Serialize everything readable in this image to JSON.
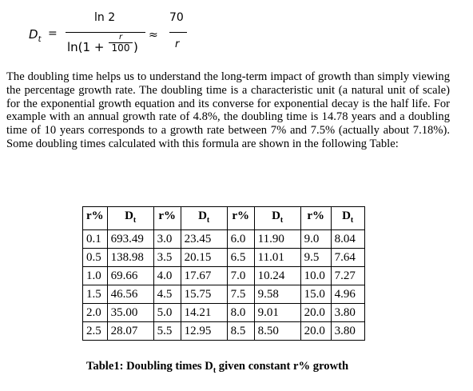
{
  "formula": {
    "lhs_symbol": "D",
    "lhs_sub": "t",
    "equals": "=",
    "num1": "ln 2",
    "den1_prefix": "ln(1 +",
    "small_num": "r",
    "small_den": "100",
    "den1_suffix": ")",
    "approx": "≈",
    "num2": "70",
    "den2": "r"
  },
  "paragraph": "The doubling time helps us to understand the long-term impact of growth than simply viewing the percentage growth rate. The doubling time is a characteristic unit (a natural unit of scale) for the exponential growth equation and its converse for exponential decay is the half life. For example with an annual growth rate of 4.8%, the doubling time is 14.78 years and a doubling time of 10 years corresponds to a growth rate between 7% and 7.5% (actually about 7.18%). Some doubling times calculated with this formula are shown in the following Table:",
  "table": {
    "headers": [
      {
        "main": "r%",
        "sub": ""
      },
      {
        "main": "D",
        "sub": "t"
      },
      {
        "main": "r%",
        "sub": ""
      },
      {
        "main": "D",
        "sub": "t"
      },
      {
        "main": "r%",
        "sub": ""
      },
      {
        "main": "D",
        "sub": "t"
      },
      {
        "main": "r%",
        "sub": ""
      },
      {
        "main": "D",
        "sub": "t"
      }
    ],
    "rows": [
      [
        "0.1",
        "693.49",
        "3.0",
        "23.45",
        "6.0",
        "11.90",
        "9.0",
        "8.04"
      ],
      [
        "0.5",
        "138.98",
        "3.5",
        "20.15",
        "6.5",
        "11.01",
        "9.5",
        "7.64"
      ],
      [
        "1.0",
        "69.66",
        "4.0",
        "17.67",
        "7.0",
        "10.24",
        "10.0",
        "7.27"
      ],
      [
        "1.5",
        "46.56",
        "4.5",
        "15.75",
        "7.5",
        "9.58",
        "15.0",
        "4.96"
      ],
      [
        "2.0",
        "35.00",
        "5.0",
        "14.21",
        "8.0",
        "9.01",
        "20.0",
        "3.80"
      ],
      [
        "2.5",
        "28.07",
        "5.5",
        "12.95",
        "8.5",
        "8.50",
        "20.0",
        "3.80"
      ]
    ]
  },
  "caption": {
    "prefix": "Table1: Doubling times D",
    "sub": "t",
    "suffix": " given constant r% growth"
  }
}
